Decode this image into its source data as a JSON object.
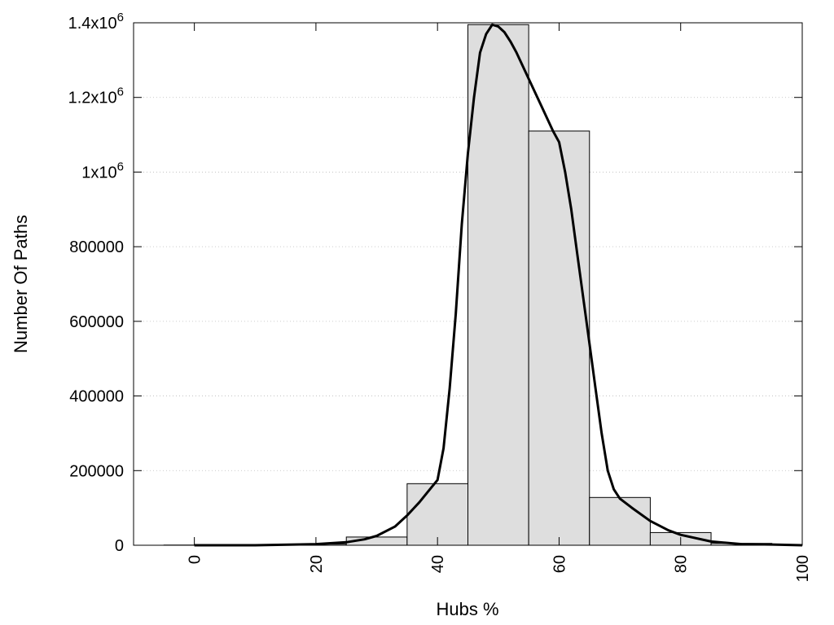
{
  "chart_data": {
    "type": "bar",
    "xlabel": "Hubs %",
    "ylabel": "Number Of Paths",
    "xlim": [
      -10,
      100
    ],
    "ylim": [
      0,
      1400000
    ],
    "x_ticks": [
      0,
      20,
      40,
      60,
      80,
      100
    ],
    "y_ticks": [
      {
        "value": 0,
        "base": "0",
        "exp": ""
      },
      {
        "value": 200000,
        "base": "200000",
        "exp": ""
      },
      {
        "value": 400000,
        "base": "400000",
        "exp": ""
      },
      {
        "value": 600000,
        "base": "600000",
        "exp": ""
      },
      {
        "value": 800000,
        "base": "800000",
        "exp": ""
      },
      {
        "value": 1000000,
        "base": "1x10",
        "exp": "6"
      },
      {
        "value": 1200000,
        "base": "1.2x10",
        "exp": "6"
      },
      {
        "value": 1400000,
        "base": "1.4x10",
        "exp": "6"
      }
    ],
    "grid": "horizontal dotted",
    "bar_color": "#dedede",
    "bars": {
      "centers": [
        0,
        10,
        20,
        30,
        40,
        50,
        60,
        70,
        80,
        90
      ],
      "width": 10,
      "values": [
        500,
        1000,
        3000,
        22000,
        165000,
        1395000,
        1110000,
        128000,
        34000,
        5000
      ]
    },
    "curve": {
      "x": [
        0,
        10,
        20,
        25,
        28,
        30,
        33,
        35,
        37,
        39,
        40,
        41,
        42,
        43,
        44,
        45,
        46,
        47,
        48,
        49,
        50,
        51,
        52,
        53,
        55,
        57,
        59,
        60,
        61,
        62,
        63,
        64,
        65,
        66,
        67,
        68,
        69,
        70,
        72,
        75,
        78,
        80,
        85,
        90,
        95,
        100
      ],
      "y": [
        0,
        0,
        3000,
        8000,
        16000,
        25000,
        50000,
        80000,
        115000,
        155000,
        175000,
        260000,
        420000,
        620000,
        860000,
        1050000,
        1200000,
        1320000,
        1370000,
        1395000,
        1390000,
        1375000,
        1350000,
        1320000,
        1250000,
        1180000,
        1110000,
        1080000,
        1000000,
        900000,
        780000,
        660000,
        540000,
        420000,
        300000,
        200000,
        150000,
        125000,
        100000,
        65000,
        40000,
        28000,
        10000,
        3000,
        2000,
        0
      ]
    }
  }
}
